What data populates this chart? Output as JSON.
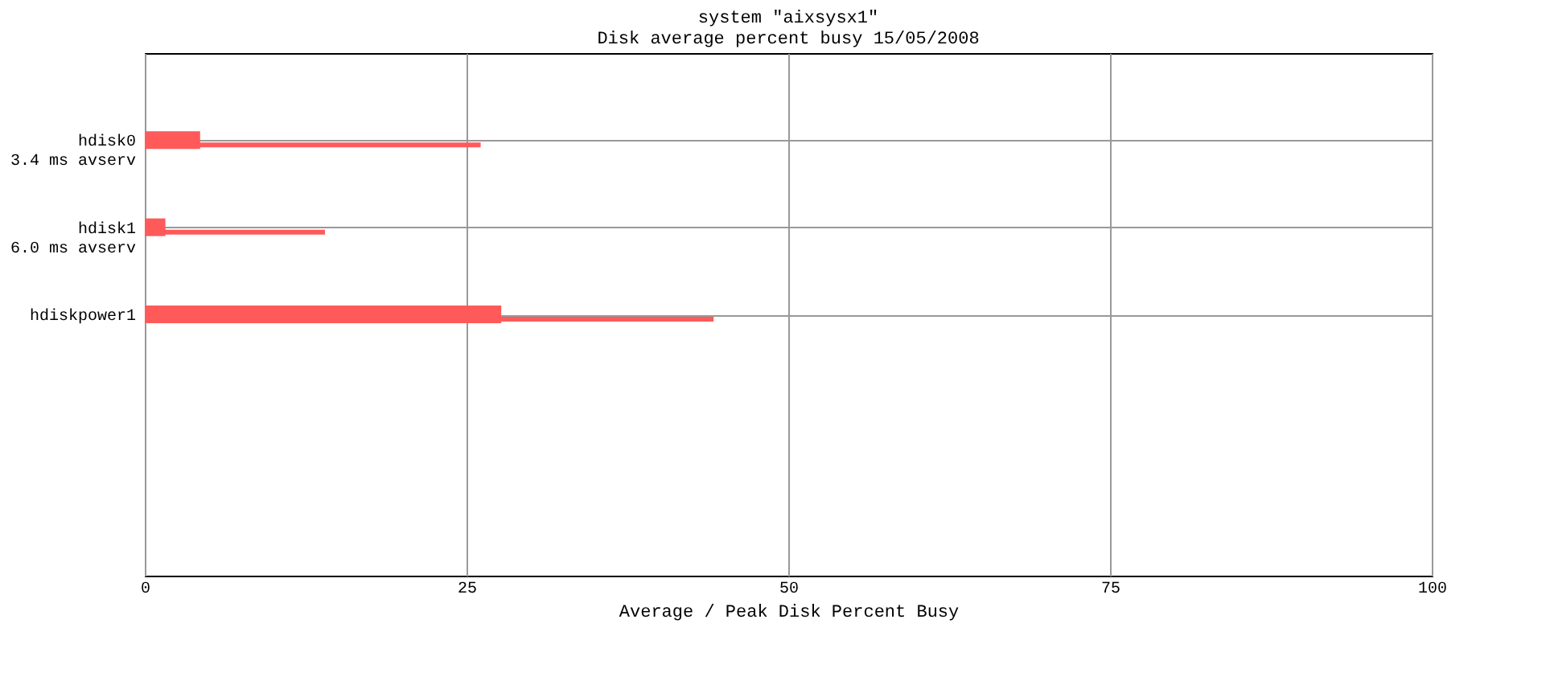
{
  "chart_data": {
    "type": "bar",
    "orientation": "horizontal",
    "title": [
      "system \"aixsysx1\"",
      "Disk average percent busy 15/05/2008"
    ],
    "xlabel": "Average / Peak Disk Percent Busy",
    "categories": [
      "hdisk0\n3.4 ms avserv",
      "hdisk1\n6.0 ms avserv",
      "hdiskpower1",
      null,
      null
    ],
    "series": [
      {
        "color": "#ff5a5a",
        "values": [
          4.3,
          1.6,
          27.7,
          null,
          null
        ]
      },
      {
        "color": "#ff5a5a",
        "values": [
          26.1,
          14.0,
          44.2,
          null,
          null
        ]
      }
    ],
    "xlim": [
      0,
      100
    ],
    "xticks": [
      0,
      25,
      50,
      75,
      100
    ],
    "grid": true
  }
}
